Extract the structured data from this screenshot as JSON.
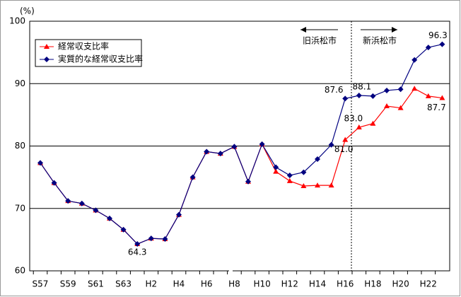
{
  "chart_data": {
    "type": "line",
    "y_unit": "(%)",
    "categories": [
      "S57",
      null,
      "S59",
      null,
      "S61",
      null,
      "S63",
      null,
      "H2",
      null,
      "H4",
      null,
      "H6",
      null,
      "H8",
      null,
      "H10",
      null,
      "H12",
      null,
      "H14",
      null,
      "H16",
      null,
      "H18",
      null,
      "H20",
      null,
      "H22",
      null
    ],
    "series": [
      {
        "name": "経常収支比率",
        "color": "#ff0000",
        "marker": "triangle",
        "values": [
          77.3,
          74.1,
          71.2,
          70.8,
          69.7,
          68.4,
          66.6,
          64.3,
          65.2,
          65.1,
          69.0,
          75.0,
          79.1,
          78.8,
          79.9,
          74.3,
          80.3,
          75.9,
          74.4,
          73.6,
          73.7,
          73.7,
          81.0,
          83.0,
          83.6,
          86.4,
          86.1,
          89.2,
          88.0,
          87.7
        ],
        "value_labels": [
          null,
          null,
          null,
          null,
          null,
          null,
          null,
          null,
          null,
          null,
          null,
          null,
          null,
          null,
          null,
          null,
          null,
          null,
          null,
          null,
          null,
          null,
          "81.0",
          "83.0",
          null,
          null,
          null,
          null,
          null,
          "87.7"
        ]
      },
      {
        "name": "実質的な経常収支比率",
        "color": "#000080",
        "marker": "diamond",
        "values": [
          77.3,
          74.1,
          71.2,
          70.8,
          69.7,
          68.4,
          66.6,
          64.3,
          65.2,
          65.1,
          69.0,
          75.0,
          79.1,
          78.8,
          79.9,
          74.3,
          80.3,
          76.6,
          75.3,
          75.8,
          77.9,
          80.2,
          87.6,
          88.1,
          88.0,
          88.9,
          89.1,
          93.8,
          95.8,
          96.3
        ],
        "value_labels": [
          null,
          null,
          null,
          null,
          null,
          null,
          null,
          "64.3",
          null,
          null,
          null,
          null,
          null,
          null,
          null,
          null,
          null,
          null,
          null,
          null,
          null,
          null,
          "87.6",
          "88.1",
          null,
          null,
          null,
          null,
          null,
          "96.3"
        ]
      }
    ],
    "annotations": [
      "旧浜松市",
      "新浜松市"
    ],
    "ylim": [
      60,
      100
    ],
    "yticks": [
      60,
      70,
      80,
      90,
      100
    ],
    "grid": true
  }
}
